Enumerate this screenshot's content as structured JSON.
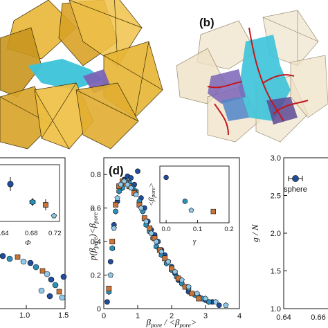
{
  "panels": {
    "a": {
      "label": ""
    },
    "b": {
      "label": "(b)"
    },
    "c": {
      "inset_xticks": [
        "0.64",
        "0.68",
        "0.72"
      ],
      "inset_xlabel": "Φ",
      "xticks": [
        "1.0",
        "1.5"
      ]
    },
    "d": {
      "label": "(d)"
    },
    "e": {
      "legend": "sphere",
      "xticks": [
        "0.64",
        "0.66"
      ]
    }
  },
  "colors": {
    "dark_blue": "#1f4e9c",
    "teal": "#2b8fb8",
    "light_blue": "#8fc8e8",
    "orange": "#c8743a",
    "gold_poly": "#e9b838",
    "cyan_pore": "#3cc3d9",
    "purple_pore": "#7b64b6",
    "red_path": "#c4161c"
  },
  "chart_data": [
    {
      "panel": "d",
      "type": "scatter",
      "xlabel": "β_pore / <β_pore>",
      "ylabel": "p(β_pore) <β_pore>",
      "xlim": [
        0,
        4
      ],
      "ylim": [
        0,
        0.9
      ],
      "xticks": [
        "0",
        "1",
        "2",
        "3",
        "4"
      ],
      "yticks": [
        "0",
        "0.2",
        "0.4",
        "0.6",
        "0.8"
      ],
      "series": [
        {
          "color": "dark_blue",
          "marker": "circle",
          "x": [
            0.1,
            0.2,
            0.3,
            0.4,
            0.5,
            0.6,
            0.7,
            0.8,
            0.9,
            1.0,
            1.1,
            1.2,
            1.3,
            1.4,
            1.5,
            1.6,
            1.7,
            1.8,
            1.9,
            2.0,
            2.1,
            2.2,
            2.3,
            2.4,
            2.5,
            2.6,
            2.8,
            3.0,
            3.2,
            3.4
          ],
          "y": [
            0.04,
            0.28,
            0.5,
            0.64,
            0.74,
            0.77,
            0.79,
            0.78,
            0.74,
            0.82,
            0.66,
            0.6,
            0.52,
            0.47,
            0.44,
            0.4,
            0.35,
            0.32,
            0.28,
            0.25,
            0.21,
            0.17,
            0.15,
            0.13,
            0.1,
            0.09,
            0.07,
            0.05,
            0.04,
            0.02
          ]
        },
        {
          "color": "teal",
          "marker": "hexagon",
          "x": [
            0.15,
            0.25,
            0.35,
            0.45,
            0.55,
            0.65,
            0.75,
            0.85,
            0.95,
            1.05,
            1.15,
            1.25,
            1.35,
            1.45,
            1.55,
            1.7,
            1.85,
            2.0,
            2.15,
            2.3,
            2.5,
            2.7,
            2.9,
            3.1
          ],
          "y": [
            0.1,
            0.36,
            0.58,
            0.7,
            0.72,
            0.76,
            0.75,
            0.72,
            0.7,
            0.64,
            0.58,
            0.5,
            0.46,
            0.42,
            0.37,
            0.32,
            0.27,
            0.23,
            0.19,
            0.15,
            0.12,
            0.08,
            0.06,
            0.04
          ]
        },
        {
          "color": "orange",
          "marker": "square",
          "x": [
            0.15,
            0.25,
            0.35,
            0.45,
            0.55,
            0.65,
            0.75,
            0.9,
            1.05,
            1.2,
            1.35,
            1.5,
            1.65,
            1.8,
            2.0,
            2.2,
            2.4,
            2.6,
            2.8
          ],
          "y": [
            0.12,
            0.4,
            0.62,
            0.73,
            0.76,
            0.75,
            0.73,
            0.69,
            0.62,
            0.54,
            0.48,
            0.42,
            0.35,
            0.3,
            0.24,
            0.18,
            0.13,
            0.09,
            0.06
          ]
        },
        {
          "color": "light_blue",
          "marker": "pentagon",
          "x": [
            0.2,
            0.3,
            0.4,
            0.5,
            0.6,
            0.7,
            0.8,
            0.95,
            1.1,
            1.25,
            1.4,
            1.55,
            1.7,
            1.9,
            2.1,
            2.3,
            2.5,
            2.75,
            3.0,
            3.3,
            3.6
          ],
          "y": [
            0.2,
            0.48,
            0.66,
            0.74,
            0.76,
            0.74,
            0.72,
            0.68,
            0.6,
            0.52,
            0.45,
            0.4,
            0.34,
            0.28,
            0.22,
            0.17,
            0.13,
            0.09,
            0.06,
            0.04,
            0.02
          ]
        }
      ],
      "inset": {
        "xlabel": "γ",
        "ylabel": "<β_pore>",
        "xlim": [
          -0.02,
          0.2
        ],
        "xticks": [
          "0.0",
          "0.1",
          "0.2"
        ],
        "points": [
          {
            "x": 0.0,
            "y": 0.8,
            "color": "dark_blue",
            "marker": "circle"
          },
          {
            "x": 0.06,
            "y": 0.38,
            "color": "teal",
            "marker": "hexagon"
          },
          {
            "x": 0.08,
            "y": 0.22,
            "color": "light_blue",
            "marker": "pentagon"
          },
          {
            "x": 0.15,
            "y": 0.2,
            "color": "orange",
            "marker": "square"
          }
        ]
      }
    },
    {
      "panel": "e",
      "type": "scatter",
      "ylabel": "g / N",
      "ylim": [
        1.0,
        3.0
      ],
      "yticks": [
        "1.0",
        "1.5",
        "2.0",
        "2.5",
        "3.0"
      ],
      "xticks": [
        "0.64",
        "0.66"
      ],
      "series": [
        {
          "name": "sphere",
          "color": "dark_blue",
          "marker": "circle",
          "x": [],
          "y": []
        }
      ]
    }
  ]
}
